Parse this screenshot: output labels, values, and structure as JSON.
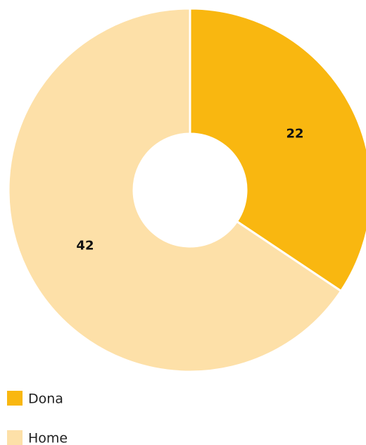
{
  "chart_data": {
    "type": "donut",
    "categories": [
      "Dona",
      "Home"
    ],
    "values": [
      22,
      42
    ],
    "colors": [
      "#f9b710",
      "#fde0a8"
    ],
    "legend": "bottom-left"
  }
}
